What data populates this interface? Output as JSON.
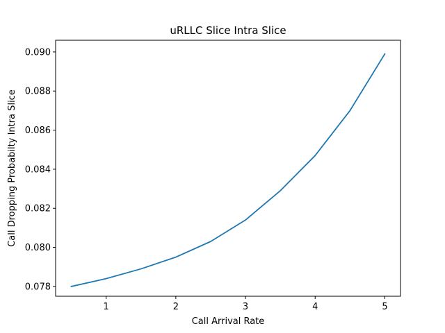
{
  "chart_data": {
    "type": "line",
    "title": "uRLLC Slice Intra Slice",
    "xlabel": "Call Arrival Rate",
    "ylabel": "Call Dropping Probabilty Intra Slice",
    "xlim": [
      0.275,
      5.225
    ],
    "ylim": [
      0.0775,
      0.0906
    ],
    "xticks": [
      1,
      2,
      3,
      4,
      5
    ],
    "xtick_labels": [
      "1",
      "2",
      "3",
      "4",
      "5"
    ],
    "yticks": [
      0.078,
      0.08,
      0.082,
      0.084,
      0.086,
      0.088,
      0.09
    ],
    "ytick_labels": [
      "0.078",
      "0.080",
      "0.082",
      "0.084",
      "0.086",
      "0.088",
      "0.090"
    ],
    "grid": false,
    "x": [
      0.5,
      1.0,
      1.5,
      2.0,
      2.5,
      3.0,
      3.5,
      4.0,
      4.5,
      5.0
    ],
    "series": [
      {
        "color": "#1f77b4",
        "values": [
          0.078,
          0.0784,
          0.0789,
          0.0795,
          0.0803,
          0.0814,
          0.0829,
          0.0847,
          0.087,
          0.0899
        ]
      }
    ]
  }
}
